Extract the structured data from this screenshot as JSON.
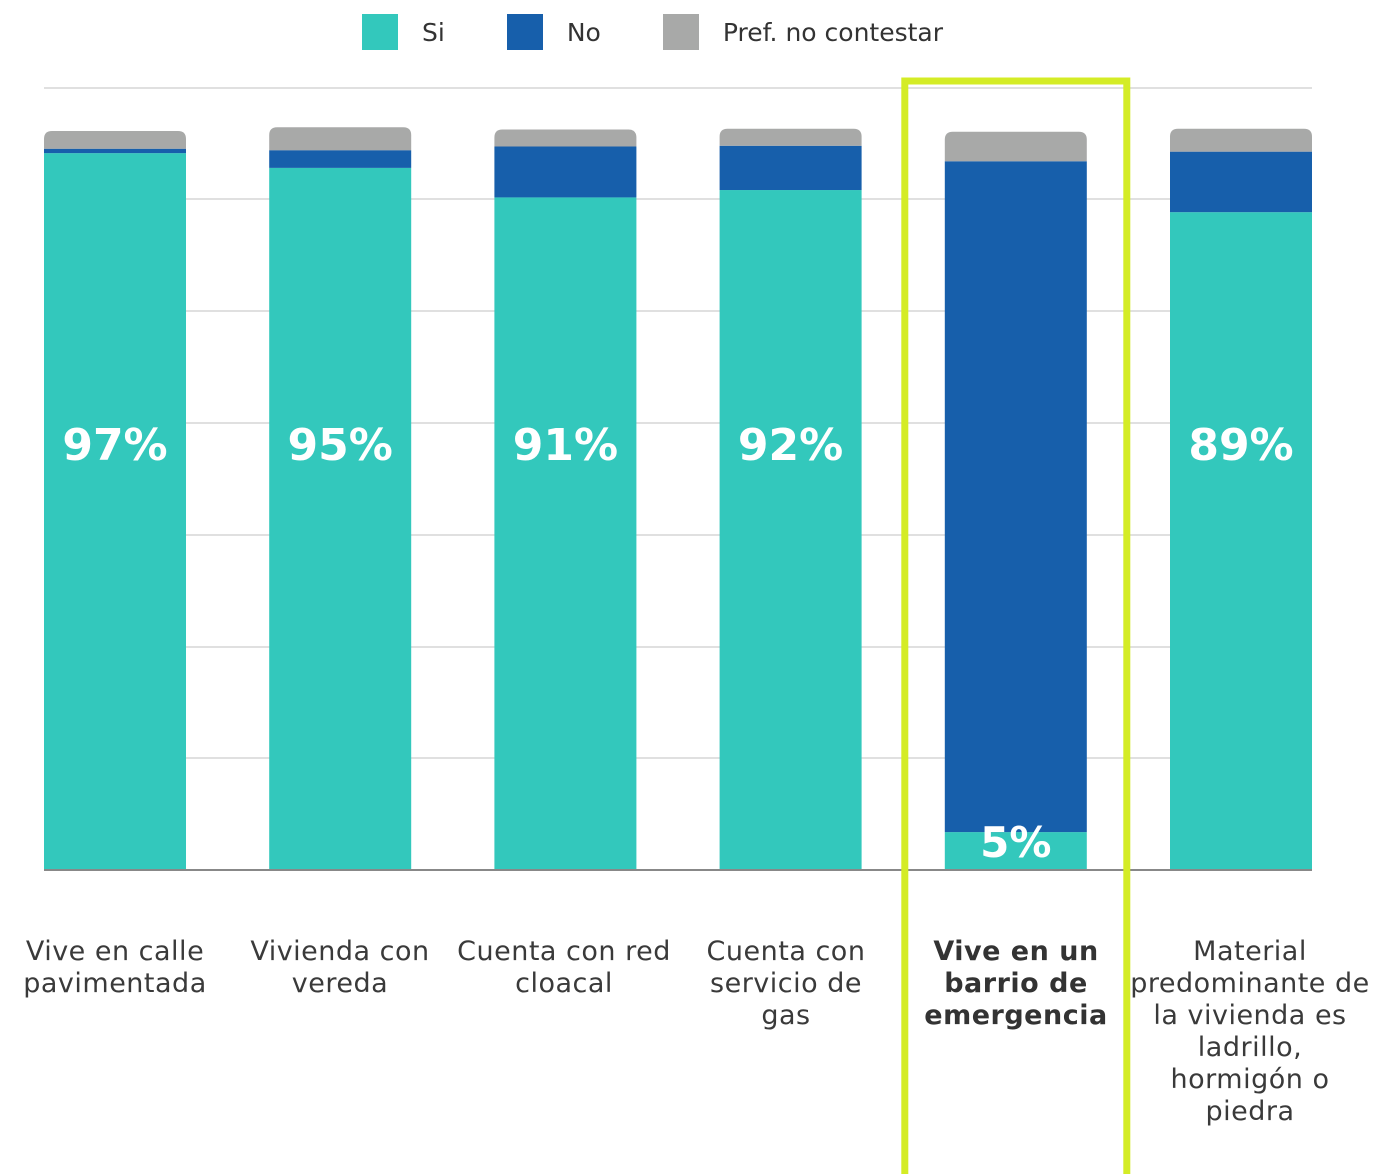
{
  "legend": {
    "items": [
      {
        "label": "Si",
        "color": "#33c8bc"
      },
      {
        "label": "No",
        "color": "#175fab"
      },
      {
        "label": "Pref. no contestar",
        "color": "#a8a9a8"
      }
    ]
  },
  "highlight_color": "#d4ec26",
  "chart_data": {
    "type": "bar",
    "stacked": true,
    "ylim": [
      0,
      105
    ],
    "grid": true,
    "legend_position": "top-center",
    "categories": [
      "Vive en calle pavimentada",
      "Vivienda con vereda",
      "Cuenta con red cloacal",
      "Cuenta con servicio de gas",
      "Vive en un barrio de emergencia",
      "Material predominante de la vivienda es ladrillo, hormigón o piedra"
    ],
    "series": [
      {
        "name": "Si",
        "color": "#33c8bc",
        "values": [
          97,
          95,
          91,
          92,
          5,
          89
        ]
      },
      {
        "name": "No",
        "color": "#175fab",
        "values": [
          0.6,
          2.4,
          6.9,
          6,
          90.9,
          8.2
        ]
      },
      {
        "name": "Pref. no contestar",
        "color": "#a8a9a8",
        "values": [
          2.4,
          3.1,
          2.3,
          2.3,
          4,
          3.1
        ]
      }
    ],
    "data_labels": [
      "97%",
      "95%",
      "91%",
      "92%",
      "5%",
      "89%"
    ],
    "highlighted_category": "Vive en un barrio de emergencia"
  }
}
